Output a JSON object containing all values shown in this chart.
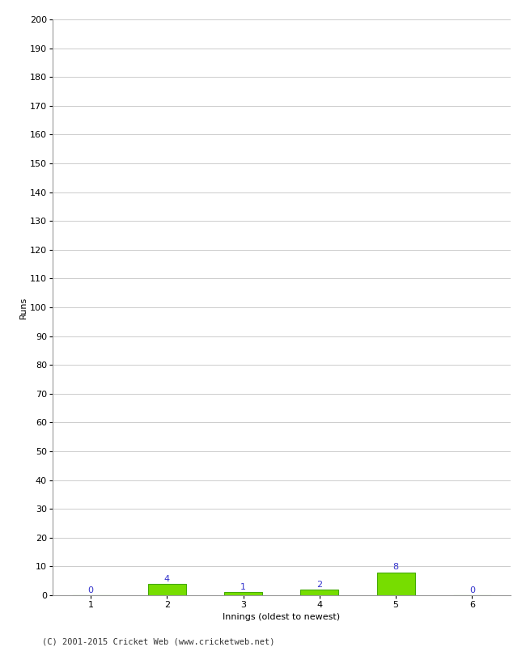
{
  "innings": [
    1,
    2,
    3,
    4,
    5,
    6
  ],
  "runs": [
    0,
    4,
    1,
    2,
    8,
    0
  ],
  "bar_color": "#77dd00",
  "bar_edge_color": "#44aa00",
  "label_color": "#3333cc",
  "xlabel": "Innings (oldest to newest)",
  "ylabel": "Runs",
  "ylim": [
    0,
    200
  ],
  "yticks": [
    0,
    10,
    20,
    30,
    40,
    50,
    60,
    70,
    80,
    90,
    100,
    110,
    120,
    130,
    140,
    150,
    160,
    170,
    180,
    190,
    200
  ],
  "footer": "(C) 2001-2015 Cricket Web (www.cricketweb.net)",
  "background_color": "#ffffff",
  "grid_color": "#cccccc"
}
